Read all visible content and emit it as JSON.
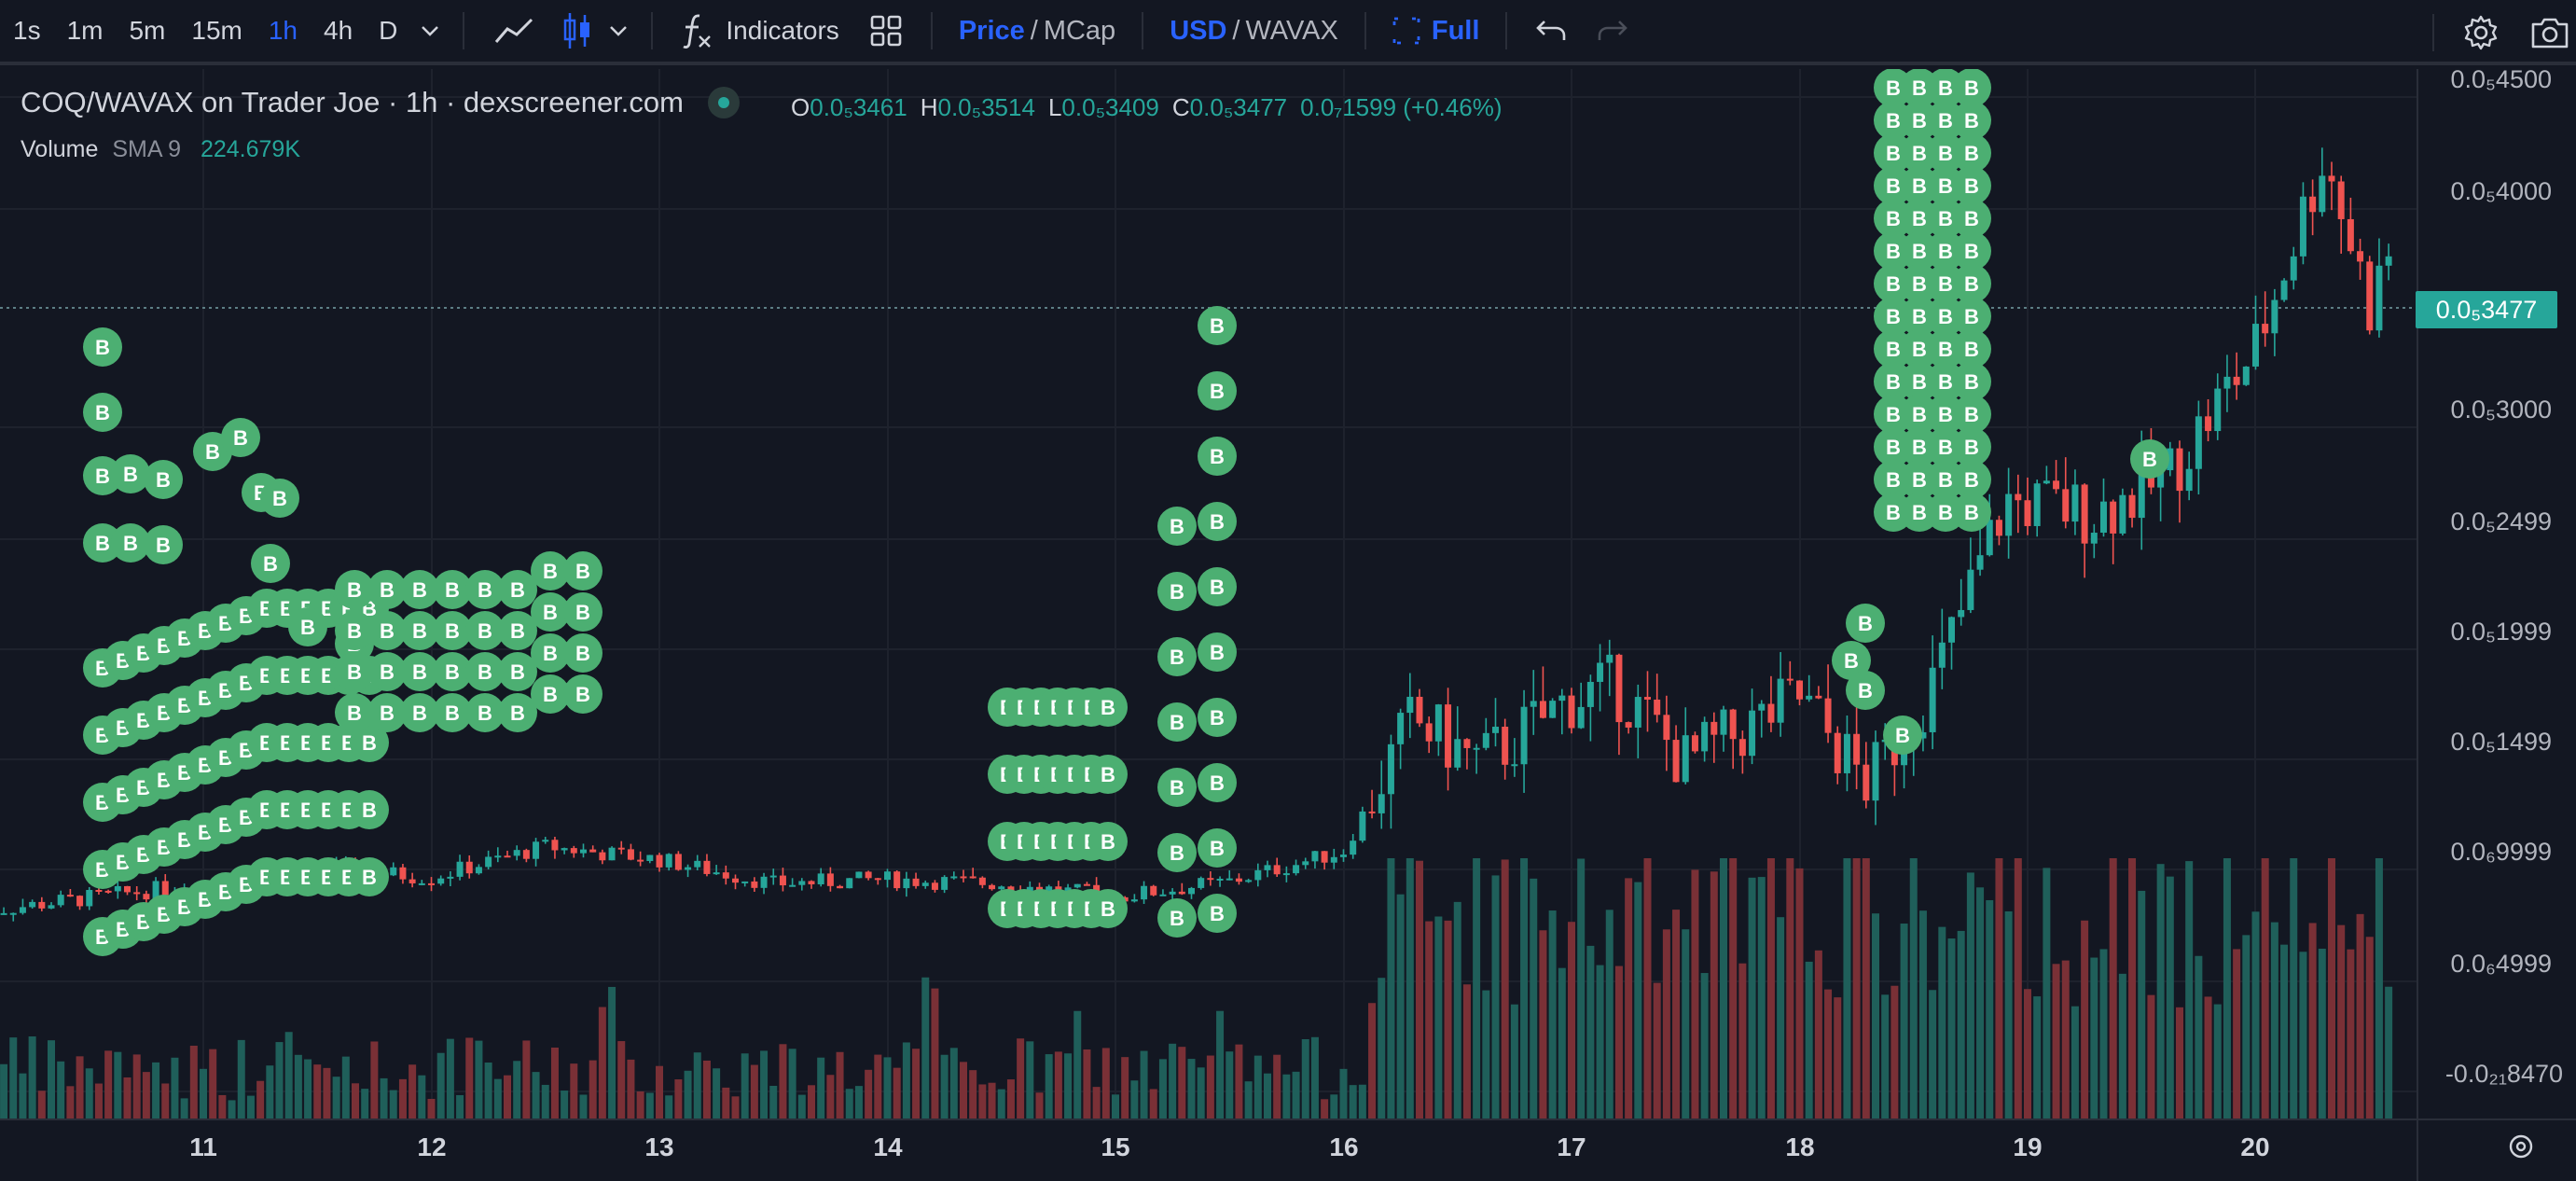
{
  "toolbar": {
    "timeframes": [
      "1s",
      "1m",
      "5m",
      "15m",
      "1h",
      "4h",
      "D"
    ],
    "active_timeframe": "1h",
    "indicators_label": "Indicators",
    "price_label": "Price",
    "mcap_label": "MCap",
    "usd_label": "USD",
    "wavax_label": "WAVAX",
    "full_label": "Full",
    "accent_color": "#2962ff"
  },
  "legend": {
    "title": "COQ/WAVAX on Trader Joe · 1h · dexscreener.com",
    "open_key": "O",
    "open": "0.0₅3461",
    "high_key": "H",
    "high": "0.0₅3514",
    "low_key": "L",
    "low": "0.0₅3409",
    "close_key": "C",
    "close": "0.0₅3477",
    "change": "0.0₇1599 (+0.46%)"
  },
  "volume_legend": {
    "label": "Volume",
    "sma": "SMA 9",
    "value": "224.679K"
  },
  "price_axis": [
    "0.0₅4500",
    "0.0₅4000",
    "0.0₅3000",
    "0.0₅2499",
    "0.0₅1999",
    "0.0₅1499",
    "0.0₆9999",
    "0.0₆4999",
    "-0.0₂₁8470"
  ],
  "last_price": "0.0₅3477",
  "date_axis": [
    "11",
    "12",
    "13",
    "14",
    "15",
    "16",
    "17",
    "18",
    "19",
    "20"
  ],
  "marker_letter": "B",
  "colors": {
    "up": "#26a69a",
    "down": "#ef5350",
    "marker": "#4caf72",
    "grid": "#1e222d",
    "background": "#131722"
  },
  "chart_data": {
    "type": "candlestick",
    "x_axis": "date",
    "series": [
      {
        "name": "Price",
        "approx_path": [
          [
            10.0,
            0.42
          ],
          [
            11.0,
            0.55
          ],
          [
            11.5,
            0.62
          ],
          [
            12.0,
            0.58
          ],
          [
            12.5,
            0.72
          ],
          [
            13.0,
            0.66
          ],
          [
            13.5,
            0.55
          ],
          [
            14.0,
            0.57
          ],
          [
            14.5,
            0.55
          ],
          [
            15.0,
            0.49
          ],
          [
            15.5,
            0.56
          ],
          [
            16.0,
            0.7
          ],
          [
            16.3,
            1.3
          ],
          [
            16.6,
            1.1
          ],
          [
            17.0,
            1.4
          ],
          [
            17.2,
            1.45
          ],
          [
            17.5,
            1.1
          ],
          [
            18.0,
            1.4
          ],
          [
            18.3,
            1.0
          ],
          [
            18.6,
            1.5
          ],
          [
            18.9,
            2.3
          ],
          [
            19.3,
            2.25
          ],
          [
            19.6,
            2.4
          ],
          [
            20.0,
            3.0
          ],
          [
            20.3,
            3.9
          ],
          [
            20.5,
            3.2
          ],
          [
            20.6,
            3.48
          ]
        ]
      }
    ]
  }
}
